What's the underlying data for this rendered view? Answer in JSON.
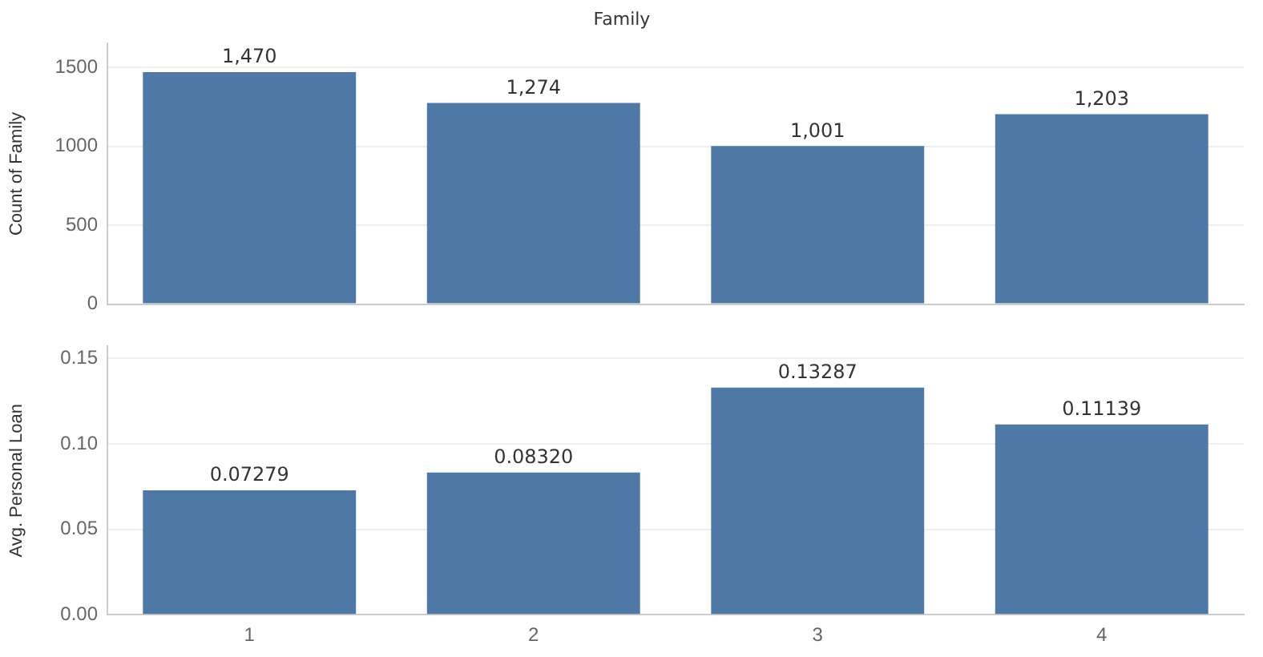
{
  "chart_data": [
    {
      "type": "bar",
      "title": "Family",
      "ylabel": "Count of Family",
      "categories": [
        "1",
        "2",
        "3",
        "4"
      ],
      "values": [
        1470,
        1274,
        1001,
        1203
      ],
      "color": "#4e79a7",
      "value_labels": [
        "1,470",
        "1,274",
        "1,001",
        "1,203"
      ],
      "ylim": [
        0,
        1650
      ],
      "yticks": [
        0,
        500,
        1000,
        1500
      ],
      "grid": "y",
      "legend": false,
      "tick_labels": "y"
    },
    {
      "type": "bar",
      "ylabel": "Avg. Personal Loan",
      "categories": [
        "1",
        "2",
        "3",
        "4"
      ],
      "values": [
        0.07279,
        0.0832,
        0.13287,
        0.11139
      ],
      "color": "#4e79a7",
      "value_labels": [
        "0.07279",
        "0.08320",
        "0.13287",
        "0.11139"
      ],
      "ylim": [
        0,
        0.157
      ],
      "yticks": [
        {
          "value": 0,
          "label": "0.00"
        },
        {
          "value": 0.05,
          "label": "0.05"
        },
        {
          "value": 0.1,
          "label": "0.10"
        },
        {
          "value": 0.15,
          "label": "0.15"
        }
      ],
      "grid": "y",
      "legend": false
    }
  ]
}
